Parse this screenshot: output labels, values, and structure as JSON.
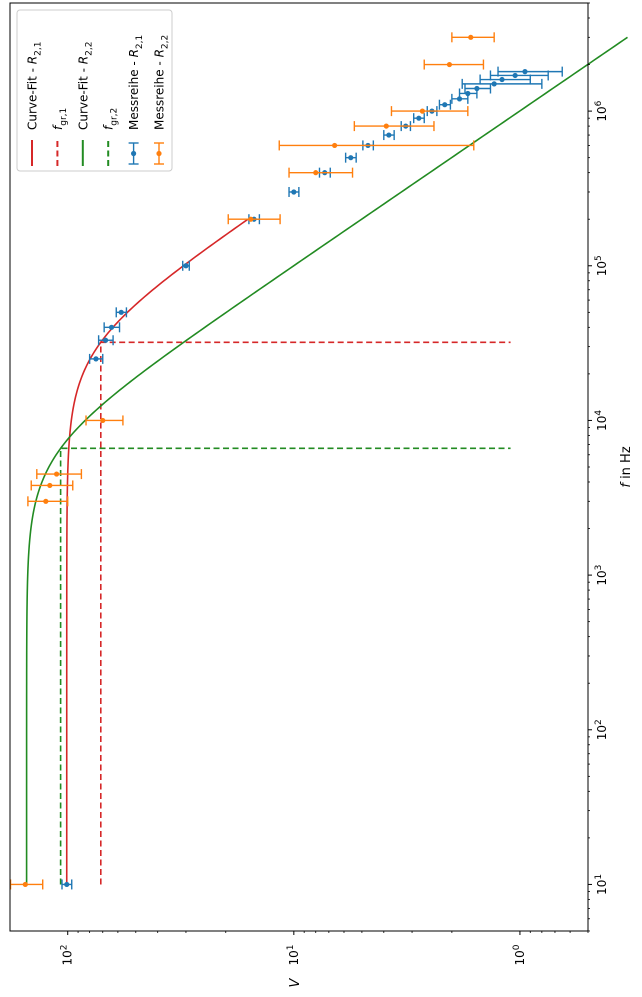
{
  "chart_data": {
    "type": "line",
    "orientation": "rotated-90",
    "xlabel": "f in Hz",
    "ylabel": "V",
    "x_scale": "log",
    "y_scale": "log",
    "xlim": [
      5,
      5000000
    ],
    "ylim": [
      0.5,
      180
    ],
    "grid": false,
    "legend_position": "top-left",
    "x_tick_labels": [
      {
        "value": 10,
        "label": "10^1"
      },
      {
        "value": 100,
        "label": "10^2"
      },
      {
        "value": 1000,
        "label": "10^3"
      },
      {
        "value": 10000,
        "label": "10^4"
      },
      {
        "value": 100000,
        "label": "10^5"
      },
      {
        "value": 1000000,
        "label": "10^6"
      }
    ],
    "y_tick_labels": [
      {
        "value": 100,
        "label": "10^2"
      },
      {
        "value": 10,
        "label": "10^1"
      },
      {
        "value": 1,
        "label": "10^0"
      }
    ],
    "series": [
      {
        "name": "Curve-Fit - R_{2,1}",
        "kind": "curve",
        "color": "#d62728",
        "linestyle": "solid",
        "model": {
          "v0": 101,
          "fgr": 32000
        },
        "x_range": [
          10,
          200000
        ]
      },
      {
        "name": "f_{gr,1}",
        "kind": "cutoff",
        "color": "#d62728",
        "linestyle": "dashed",
        "x_cutoff": 32000,
        "y_level": 71.4,
        "x_start": 10,
        "y_end": 1.1
      },
      {
        "name": "Curve-Fit - R_{2,2}",
        "kind": "curve",
        "color": "#228b22",
        "linestyle": "solid",
        "model": {
          "v0": 152,
          "fgr": 6600
        },
        "x_range": [
          10,
          3000000
        ]
      },
      {
        "name": "f_{gr,2}",
        "kind": "cutoff",
        "color": "#228b22",
        "linestyle": "dashed",
        "x_cutoff": 6600,
        "y_level": 107.5,
        "x_start": 10,
        "y_end": 1.1
      },
      {
        "name": "Messreihe - R_{2,1}",
        "kind": "errorbar",
        "color": "#1f77b4",
        "points": [
          {
            "x": 10,
            "y": 101,
            "err": 5
          },
          {
            "x": 25000,
            "y": 75,
            "err": 5
          },
          {
            "x": 33000,
            "y": 68,
            "err": 5
          },
          {
            "x": 40000,
            "y": 64,
            "err": 5
          },
          {
            "x": 50000,
            "y": 58,
            "err": 3
          },
          {
            "x": 100000,
            "y": 30,
            "err": 1
          },
          {
            "x": 200000,
            "y": 15,
            "err": 0.8
          },
          {
            "x": 300000,
            "y": 10,
            "err": 0.5
          },
          {
            "x": 400000,
            "y": 7.3,
            "err": 0.4
          },
          {
            "x": 500000,
            "y": 5.6,
            "err": 0.3
          },
          {
            "x": 600000,
            "y": 4.7,
            "err": 0.25
          },
          {
            "x": 700000,
            "y": 3.8,
            "err": 0.2
          },
          {
            "x": 800000,
            "y": 3.2,
            "err": 0.15
          },
          {
            "x": 900000,
            "y": 2.8,
            "err": 0.15
          },
          {
            "x": 1000000,
            "y": 2.45,
            "err": 0.12
          },
          {
            "x": 1100000,
            "y": 2.15,
            "err": 0.12
          },
          {
            "x": 1200000,
            "y": 1.85,
            "err": 0.15
          },
          {
            "x": 1300000,
            "y": 1.7,
            "err": 0.15
          },
          {
            "x": 1400000,
            "y": 1.55,
            "err": 0.2
          },
          {
            "x": 1500000,
            "y": 1.3,
            "err": 0.5
          },
          {
            "x": 1600000,
            "y": 1.2,
            "err": 0.3
          },
          {
            "x": 1700000,
            "y": 1.05,
            "err": 0.3
          },
          {
            "x": 1800000,
            "y": 0.95,
            "err": 0.3
          }
        ]
      },
      {
        "name": "Messreihe - R_{2,2}",
        "kind": "errorbar",
        "color": "#ff7f0e",
        "points": [
          {
            "x": 10,
            "y": 154,
            "err": 25
          },
          {
            "x": 3000,
            "y": 125,
            "err": 25
          },
          {
            "x": 3800,
            "y": 120,
            "err": 25
          },
          {
            "x": 4500,
            "y": 112,
            "err": 25
          },
          {
            "x": 10000,
            "y": 70,
            "err": 13
          },
          {
            "x": 200000,
            "y": 15.5,
            "err": 4
          },
          {
            "x": 400000,
            "y": 8,
            "err": 2.5
          },
          {
            "x": 600000,
            "y": 6.6,
            "err": 5
          },
          {
            "x": 800000,
            "y": 3.9,
            "err": 1.5
          },
          {
            "x": 1000000,
            "y": 2.7,
            "err": 1
          },
          {
            "x": 2000000,
            "y": 2.05,
            "err": 0.6
          },
          {
            "x": 3000000,
            "y": 1.65,
            "err": 0.35
          }
        ]
      }
    ],
    "legend": [
      {
        "label": "Curve-Fit - ",
        "sym": "R",
        "sub": "2,1",
        "marker": "line",
        "color": "#d62728"
      },
      {
        "label": "",
        "sym": "f",
        "sub": "gr,1",
        "marker": "dash",
        "color": "#d62728"
      },
      {
        "label": "Curve-Fit - ",
        "sym": "R",
        "sub": "2,2",
        "marker": "line",
        "color": "#228b22"
      },
      {
        "label": "",
        "sym": "f",
        "sub": "gr,2",
        "marker": "dash",
        "color": "#228b22"
      },
      {
        "label": "Messreihe - ",
        "sym": "R",
        "sub": "2,1",
        "marker": "errorbar",
        "color": "#1f77b4"
      },
      {
        "label": "Messreihe - ",
        "sym": "R",
        "sub": "2,2",
        "marker": "errorbar",
        "color": "#ff7f0e"
      }
    ]
  }
}
